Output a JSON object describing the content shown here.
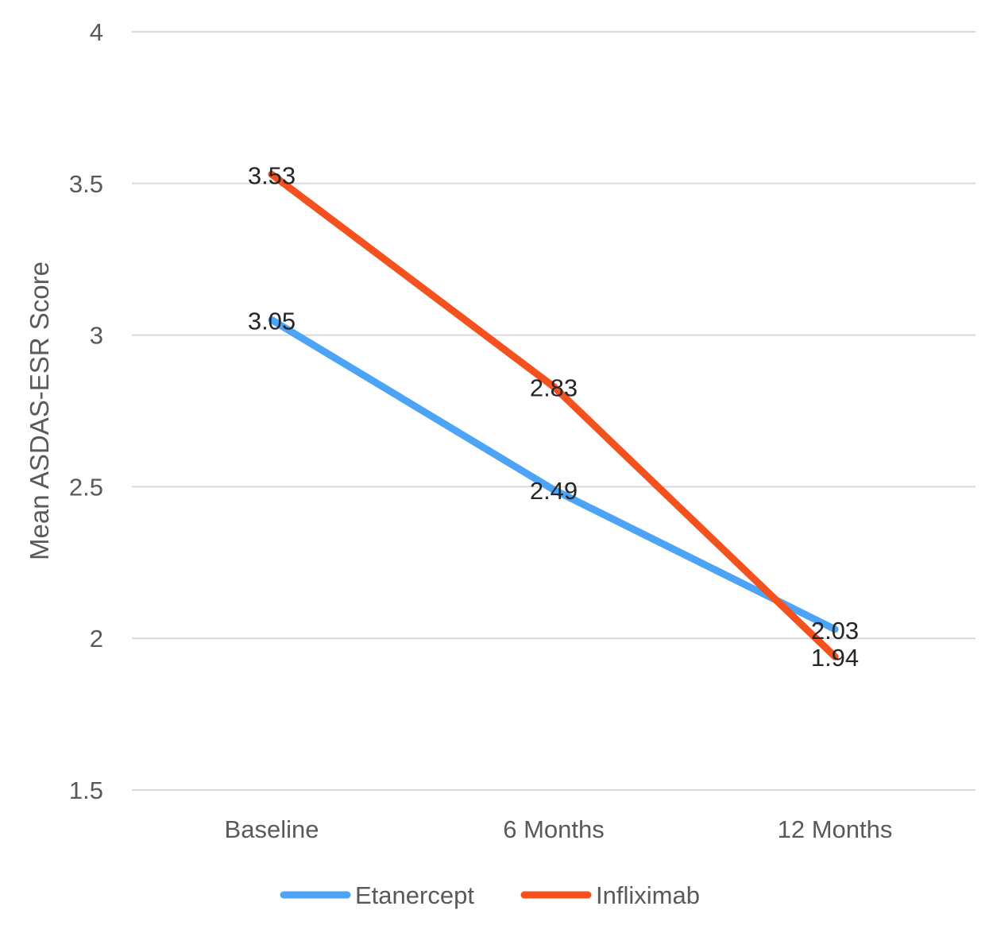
{
  "chart_data": {
    "type": "line",
    "title": "",
    "xlabel": "",
    "ylabel": "Mean ASDAS-ESR Score",
    "categories": [
      "Baseline",
      "6 Months",
      "12 Months"
    ],
    "ylim": [
      1.5,
      4
    ],
    "yticks": [
      1.5,
      2,
      2.5,
      3,
      3.5,
      4
    ],
    "ytick_labels": [
      "1.5",
      "2",
      "2.5",
      "3",
      "3.5",
      "4"
    ],
    "grid": true,
    "legend_position": "bottom",
    "series": [
      {
        "name": "Etanercept",
        "color": "#4da3f5",
        "values": [
          3.05,
          2.49,
          2.03
        ],
        "labels": [
          "3.05",
          "2.49",
          "2.03"
        ]
      },
      {
        "name": "Infliximab",
        "color": "#f4511e",
        "values": [
          3.53,
          2.83,
          1.94
        ],
        "labels": [
          "3.53",
          "2.83",
          "1.94"
        ]
      }
    ]
  }
}
